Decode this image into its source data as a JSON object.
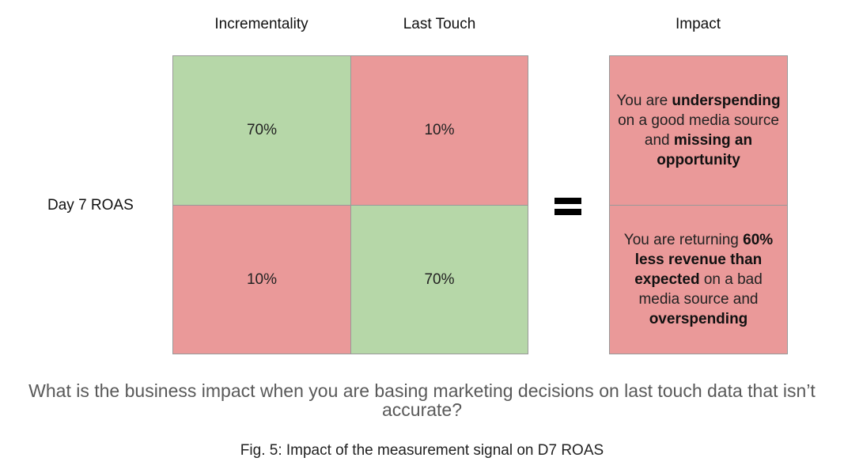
{
  "matrix": {
    "column_headers": [
      "Incrementality",
      "Last Touch"
    ],
    "row_label": "Day 7 ROAS",
    "cells": [
      {
        "value": "70%",
        "status": "green"
      },
      {
        "value": "10%",
        "status": "red"
      },
      {
        "value": "10%",
        "status": "red"
      },
      {
        "value": "70%",
        "status": "green"
      }
    ]
  },
  "impact": {
    "header": "Impact",
    "top": {
      "t1": "You are ",
      "b1": "underspending",
      "t2": " on a good media source and ",
      "b2": "missing an opportunity"
    },
    "bottom": {
      "t1": "You are returning ",
      "b1": "60% less revenue than expected",
      "t2": " on a bad media source and ",
      "b2": "overspending"
    }
  },
  "question": "What is the business impact when you are basing marketing decisions on last touch data that isn’t accurate?",
  "caption": "Fig. 5: Impact of the measurement signal on D7 ROAS",
  "colors": {
    "green": "#b6d7a8",
    "red": "#ea9999",
    "question_text": "#595959"
  }
}
